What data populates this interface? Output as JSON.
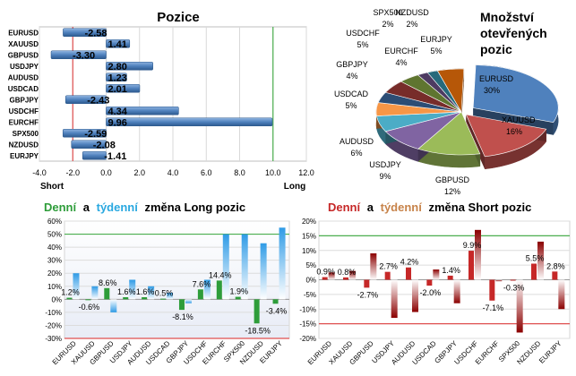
{
  "positions": {
    "title": "Pozice",
    "short_label": "Short",
    "long_label": "Long",
    "xlim": [
      -4,
      12
    ],
    "xticks": [
      -4,
      -2,
      0,
      2,
      4,
      6,
      8,
      10,
      12
    ],
    "xtick_labels": [
      "-4.0",
      "-2.0",
      "0.0",
      "2.0",
      "4.0",
      "6.0",
      "8.0",
      "10.0",
      "12.0"
    ],
    "bar_color": "#4f81bd",
    "short_line_color": "#e05050",
    "long_line_color": "#4caf50"
  },
  "pie": {
    "title_lines": [
      "Množství",
      "otevřených",
      "pozic"
    ],
    "labels": [
      {
        "name": "EURUSD",
        "pct": "30%"
      },
      {
        "name": "XAUUSD",
        "pct": "16%"
      },
      {
        "name": "GBPUSD",
        "pct": "12%"
      },
      {
        "name": "USDJPY",
        "pct": "9%"
      },
      {
        "name": "AUDUSD",
        "pct": "6%"
      },
      {
        "name": "USDCAD",
        "pct": "5%"
      },
      {
        "name": "GBPJPY",
        "pct": "4%"
      },
      {
        "name": "USDCHF",
        "pct": "5%"
      },
      {
        "name": "EURCHF",
        "pct": "4%"
      },
      {
        "name": "SPX500",
        "pct": "2%"
      },
      {
        "name": "NZDUSD",
        "pct": "2%"
      },
      {
        "name": "EURJPY",
        "pct": "5%"
      }
    ]
  },
  "long_change": {
    "title_parts": [
      "Denní",
      "a",
      "týdenní",
      "změna Long pozic"
    ],
    "title_colors": [
      "#2e9d3a",
      "#000000",
      "#29a8e0",
      "#000000"
    ],
    "ylim": [
      -30,
      60
    ],
    "yticks": [
      "60%",
      "50%",
      "40%",
      "30%",
      "20%",
      "10%",
      "0%",
      "-10%",
      "-20%",
      "-30%"
    ]
  },
  "short_change": {
    "title_parts": [
      "Denní",
      "a",
      "týdenní",
      "změna Short pozic"
    ],
    "title_colors": [
      "#c62828",
      "#000000",
      "#c7834a",
      "#000000"
    ],
    "ylim": [
      -20,
      20
    ],
    "yticks": [
      "20%",
      "15%",
      "10%",
      "5%",
      "0%",
      "-5%",
      "-10%",
      "-15%",
      "-20%"
    ]
  },
  "chart_data": [
    {
      "type": "bar",
      "orientation": "horizontal",
      "title": "Pozice",
      "categories": [
        "EURUSD",
        "XAUUSD",
        "GBPUSD",
        "USDJPY",
        "AUDUSD",
        "USDCAD",
        "GBPJPY",
        "USDCHF",
        "EURCHF",
        "SPX500",
        "NZDUSD",
        "EURJPY"
      ],
      "values": [
        -2.58,
        1.41,
        -3.3,
        2.8,
        1.23,
        2.01,
        -2.43,
        4.34,
        9.96,
        -2.59,
        -2.08,
        -1.41
      ],
      "labels": [
        "-2.58",
        "1.41",
        "-3.30",
        "2.80",
        "1.23",
        "2.01",
        "-2.43",
        "4.34",
        "9.96",
        "-2.59",
        "-2.08",
        "-1.41"
      ],
      "xlim": [
        -4,
        12
      ]
    },
    {
      "type": "pie",
      "title": "Množství otevřených pozic",
      "categories": [
        "EURUSD",
        "XAUUSD",
        "GBPUSD",
        "USDJPY",
        "AUDUSD",
        "USDCAD",
        "GBPJPY",
        "USDCHF",
        "EURCHF",
        "SPX500",
        "NZDUSD",
        "EURJPY"
      ],
      "values": [
        30,
        16,
        12,
        9,
        6,
        5,
        4,
        5,
        4,
        2,
        2,
        5
      ],
      "colors": [
        "#4f81bd",
        "#c0504d",
        "#9bbb59",
        "#8064a2",
        "#4bacc6",
        "#f79646",
        "#2c4d75",
        "#772c2a",
        "#5f7530",
        "#4d3b62",
        "#276a7c",
        "#b65708"
      ]
    },
    {
      "type": "bar",
      "title": "Denní a týdenní změna Long pozic",
      "categories": [
        "EURUSD",
        "XAUUSD",
        "GBPUSD",
        "USDJPY",
        "AUDUSD",
        "USDCAD",
        "GBPJPY",
        "USDCHF",
        "EURCHF",
        "SPX500",
        "NZDUSD",
        "EURJPY"
      ],
      "series": [
        {
          "values": [
            1.2,
            -0.6,
            8.6,
            1.6,
            1.6,
            0.5,
            -8.1,
            7.6,
            14.4,
            1.9,
            -18.5,
            -3.4
          ],
          "labels": [
            "1.2%",
            "-0.6%",
            "8.6%",
            "1.6%",
            "1.6%",
            "0.5%",
            "-8.1%",
            "7.6%",
            "14.4%",
            "1.9%",
            "-18.5%",
            "-3.4%"
          ]
        },
        {
          "values": [
            20,
            10,
            -10,
            15,
            10,
            5,
            -3,
            15,
            50,
            50,
            43,
            55
          ]
        }
      ],
      "ylim": [
        -30,
        60
      ]
    },
    {
      "type": "bar",
      "title": "Denní a týdenní změna Short pozic",
      "categories": [
        "EURUSD",
        "XAUUSD",
        "GBPUSD",
        "USDJPY",
        "AUDUSD",
        "USDCAD",
        "GBPJPY",
        "USDCHF",
        "EURCHF",
        "SPX500",
        "NZDUSD",
        "EURJPY"
      ],
      "series": [
        {
          "values": [
            0.9,
            0.8,
            -2.7,
            2.7,
            4.2,
            -2.0,
            1.4,
            9.9,
            -7.1,
            -0.3,
            5.5,
            2.8
          ],
          "labels": [
            "0.9%",
            "0.8%",
            "-2.7%",
            "2.7%",
            "4.2%",
            "-2.0%",
            "1.4%",
            "9.9%",
            "-7.1%",
            "-0.3%",
            "5.5%",
            "2.8%"
          ]
        },
        {
          "values": [
            2.5,
            3,
            9,
            -13,
            -11,
            3.5,
            -8,
            17,
            -0.5,
            -18,
            13,
            -10
          ]
        }
      ],
      "ylim": [
        -20,
        20
      ]
    }
  ]
}
